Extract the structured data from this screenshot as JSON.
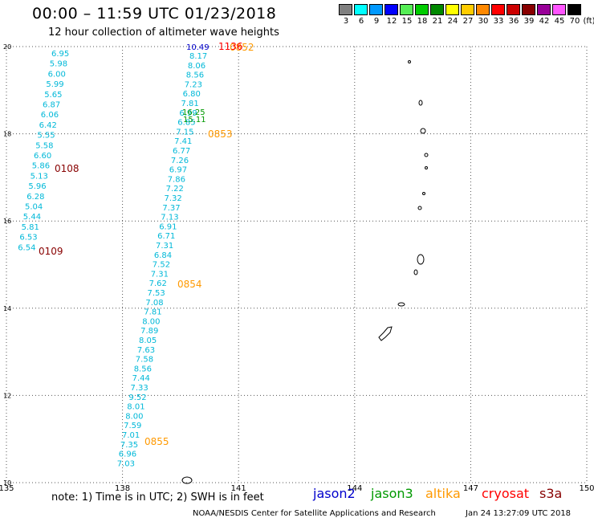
{
  "header": {
    "title": "00:00 – 11:59 UTC 01/23/2018",
    "subtitle": "12 hour collection of altimeter wave heights"
  },
  "legend": {
    "unit": "(ft)",
    "swatches": [
      {
        "label": "3",
        "color": "#808080"
      },
      {
        "label": "6",
        "color": "#00ffff"
      },
      {
        "label": "9",
        "color": "#0099ff"
      },
      {
        "label": "12",
        "color": "#0000ff"
      },
      {
        "label": "15",
        "color": "#55ee55"
      },
      {
        "label": "18",
        "color": "#00cc00"
      },
      {
        "label": "21",
        "color": "#008800"
      },
      {
        "label": "24",
        "color": "#ffff00"
      },
      {
        "label": "27",
        "color": "#ffcc00"
      },
      {
        "label": "30",
        "color": "#ff8800"
      },
      {
        "label": "33",
        "color": "#ff0000"
      },
      {
        "label": "36",
        "color": "#cc0000"
      },
      {
        "label": "39",
        "color": "#880000"
      },
      {
        "label": "42",
        "color": "#990099"
      },
      {
        "label": "45",
        "color": "#ff55ff"
      },
      {
        "label": "70",
        "color": "#000000"
      }
    ]
  },
  "axes": {
    "lon_ticks": [
      "135",
      "138",
      "141",
      "144",
      "147",
      "150"
    ],
    "lat_ticks": [
      "20",
      "18",
      "16",
      "14",
      "12",
      "10"
    ],
    "lon_range": [
      135,
      150
    ],
    "lat_range": [
      10,
      20
    ],
    "grid": "dotted"
  },
  "colors": {
    "cyan_track": "#00b8d8",
    "blue_label": "#0000cc",
    "green_label": "#009900",
    "orange_time": "#ff9900",
    "dark_red_time": "#880000",
    "red_time": "#ff0000"
  },
  "tracks": {
    "track_a": [
      "6.95",
      "5.98",
      "6.00",
      "5.99",
      "5.65",
      "6.87",
      "6.06",
      "6.42",
      "5.55",
      "5.58",
      "6.60",
      "5.86",
      "5.13",
      "5.96",
      "6.28",
      "5.04",
      "5.44",
      "5.81",
      "6.53",
      "6.54"
    ],
    "track_b": [
      "8.17",
      "8.06",
      "8.56",
      "7.23",
      "6.80",
      "7.81",
      "6.99",
      "6.85",
      "7.15",
      "7.41",
      "6.77",
      "7.26",
      "6.97",
      "7.86",
      "7.22",
      "7.32",
      "7.37",
      "7.13",
      "6.91",
      "6.71",
      "7.31",
      "6.84",
      "7.52",
      "7.31",
      "7.62",
      "7.53",
      "7.08",
      "7.81",
      "8.00",
      "7.89",
      "8.05",
      "7.63",
      "7.58",
      "8.56",
      "7.44",
      "7.33",
      "9.52",
      "8.01",
      "8.00",
      "7.59",
      "7.01",
      "7.35",
      "6.96",
      "7.03"
    ],
    "top_value": "10.49",
    "green_values": [
      "16.25",
      "15.11"
    ]
  },
  "time_labels": [
    {
      "text": "0108",
      "color": "#880000"
    },
    {
      "text": "0109",
      "color": "#880000"
    },
    {
      "text": "0853",
      "color": "#ff9900"
    },
    {
      "text": "0854",
      "color": "#ff9900"
    },
    {
      "text": "0855",
      "color": "#ff9900"
    },
    {
      "text": "0852",
      "color": "#ff9900"
    },
    {
      "text": "1136",
      "color": "#ff0000"
    }
  ],
  "footer": {
    "note": "note:  1) Time is in UTC;  2) SWH is in feet",
    "satellites": [
      {
        "name": "jason2",
        "color": "#0000cc"
      },
      {
        "name": "jason3",
        "color": "#009900"
      },
      {
        "name": "altika",
        "color": "#ff9900"
      },
      {
        "name": "cryosat",
        "color": "#ff0000"
      },
      {
        "name": "s3a",
        "color": "#880000"
      }
    ],
    "credit": "NOAA/NESDIS Center for Satellite Applications and Research",
    "timestamp": "Jan 24 13:27:09 UTC 2018"
  }
}
